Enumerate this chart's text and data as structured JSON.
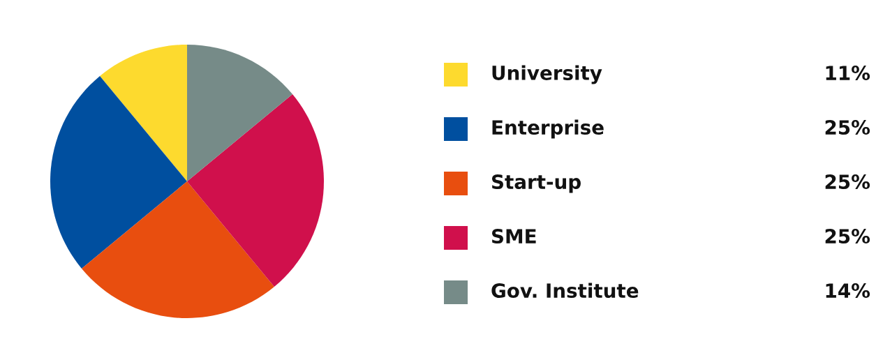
{
  "chart_data": {
    "type": "pie",
    "categories": [
      "University",
      "Enterprise",
      "Start-up",
      "SME",
      "Gov. Institute"
    ],
    "values": [
      11,
      25,
      25,
      25,
      14
    ],
    "colors": [
      "#fdda2e",
      "#004f9f",
      "#e84e0f",
      "#d0104c",
      "#768b88"
    ],
    "value_labels": [
      "11%",
      "25%",
      "25%",
      "25%",
      "14%"
    ],
    "legend": "right"
  }
}
